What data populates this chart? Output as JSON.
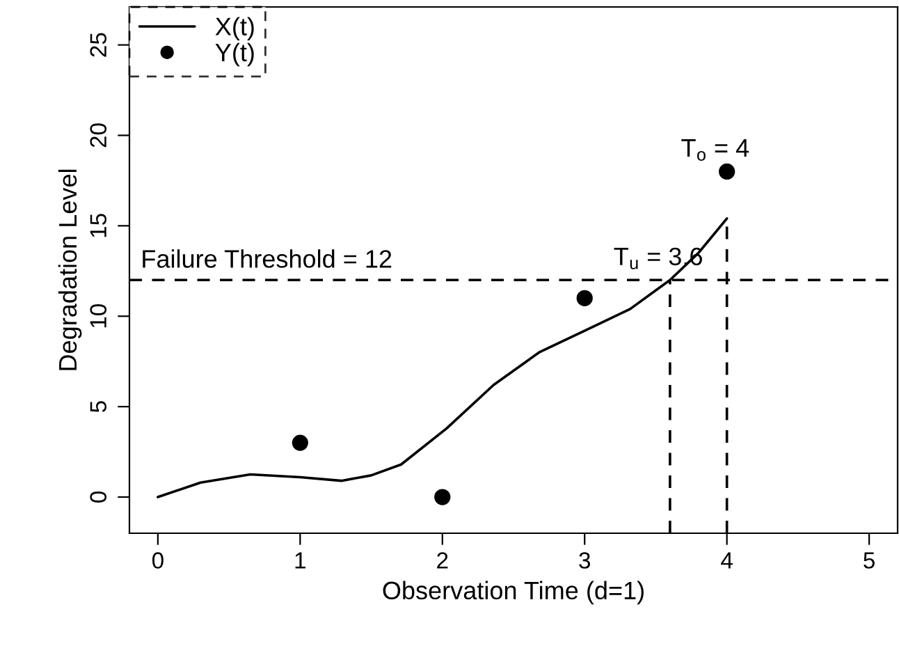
{
  "chart_data": {
    "type": "line",
    "xlabel": "Observation Time (d=1)",
    "ylabel": "Degradation Level",
    "xlim": [
      -0.2,
      5.2
    ],
    "ylim": [
      -2,
      27.1
    ],
    "xticks": [
      0,
      1,
      2,
      3,
      4,
      5
    ],
    "yticks": [
      0,
      5,
      10,
      15,
      20,
      25
    ],
    "grid": false,
    "legend": "top left",
    "series": [
      {
        "name": "X(t)",
        "color": "#000000",
        "line_style": "solid",
        "marker": "none",
        "x": [
          0,
          0.3,
          0.65,
          1.0,
          1.29,
          1.5,
          1.71,
          2.03,
          2.36,
          2.68,
          3.0,
          3.32,
          3.6,
          3.8,
          4.0
        ],
        "values": [
          0,
          0.8,
          1.25,
          1.1,
          0.9,
          1.2,
          1.8,
          3.8,
          6.2,
          8.0,
          9.2,
          10.4,
          12,
          13.5,
          15.4
        ]
      },
      {
        "name": "Y(t)",
        "type": "scatter",
        "color": "#000000",
        "marker": "circle",
        "x": [
          1,
          2,
          3,
          4
        ],
        "values": [
          3,
          0,
          11,
          18
        ]
      },
      {
        "color": "#000000",
        "line_style": "dashed",
        "marker": "none",
        "x": [
          3.6,
          3.6
        ],
        "values": [
          -2,
          12
        ]
      },
      {
        "color": "#000000",
        "line_style": "dashed",
        "marker": "none",
        "x": [
          4,
          4
        ],
        "values": [
          -2,
          15.4
        ]
      }
    ],
    "ref_lines": [
      {
        "axis": "y",
        "value": 12,
        "label": "Failure Threshold = 12",
        "color": "#000000",
        "line_style": "dashed"
      }
    ],
    "annotations": [
      {
        "text": "T$_{u}$ = 3.6",
        "x": 3.6,
        "y": 12
      },
      {
        "text": "T$_{o}$ = 4",
        "x": 4,
        "y": 18
      }
    ]
  }
}
